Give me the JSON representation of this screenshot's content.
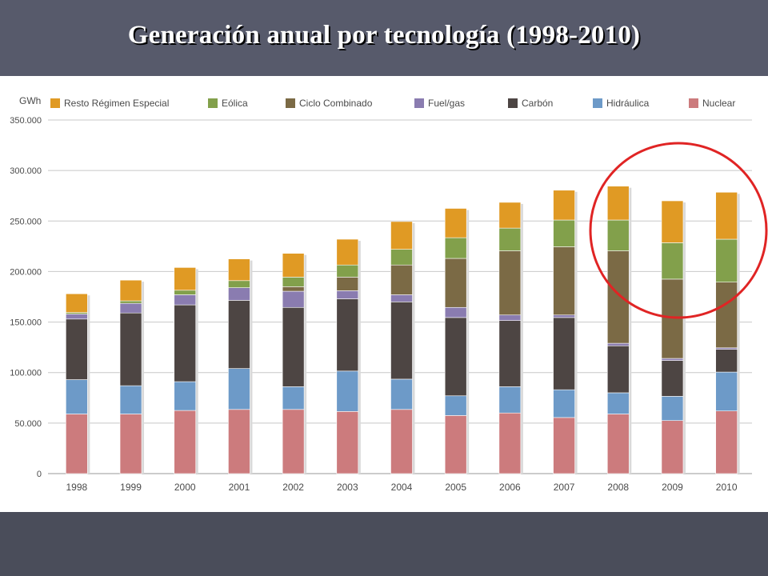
{
  "slide": {
    "title": "Generación anual por tecnología (1998-2010)"
  },
  "colors": {
    "header_bg": "#575a6b",
    "footer_bg": "#4a4d5a",
    "highlight": "#e02424"
  },
  "chart_data": {
    "type": "bar",
    "stacked": true,
    "title": "",
    "xlabel": "",
    "ylabel": "GWh",
    "ylim": [
      0,
      350000
    ],
    "yticks": [
      0,
      50000,
      100000,
      150000,
      200000,
      250000,
      300000,
      350000
    ],
    "ytick_labels": [
      "0",
      "50.000",
      "100.000",
      "150.000",
      "200.000",
      "250.000",
      "300.000",
      "350.000"
    ],
    "grid": true,
    "legend": "top",
    "highlight_years": [
      "2008",
      "2009",
      "2010"
    ],
    "categories": [
      "1998",
      "1999",
      "2000",
      "2001",
      "2002",
      "2003",
      "2004",
      "2005",
      "2006",
      "2007",
      "2008",
      "2009",
      "2010"
    ],
    "series": [
      {
        "name": "Nuclear",
        "color": "#cc7b7d",
        "values": [
          59000,
          59000,
          62500,
          63500,
          63500,
          61500,
          63500,
          57500,
          60000,
          55500,
          59000,
          52500,
          62000
        ]
      },
      {
        "name": "Hidráulica",
        "color": "#6d9ac8",
        "values": [
          34000,
          28000,
          28500,
          40500,
          22500,
          40000,
          30000,
          19500,
          26000,
          27500,
          21000,
          24000,
          38500
        ]
      },
      {
        "name": "Carbón",
        "color": "#4d4543",
        "values": [
          60000,
          72000,
          76000,
          67500,
          78500,
          71500,
          76500,
          77500,
          65500,
          71500,
          46500,
          35500,
          22500
        ]
      },
      {
        "name": "Fuel/gas",
        "color": "#8a7cb0",
        "values": [
          5000,
          9500,
          10000,
          12500,
          16000,
          8000,
          7000,
          10000,
          5500,
          2500,
          2500,
          2000,
          1500
        ]
      },
      {
        "name": "Ciclo Combinado",
        "color": "#7b6a45",
        "values": [
          0,
          0,
          0,
          0,
          4500,
          13500,
          29500,
          48500,
          63500,
          67500,
          91500,
          78500,
          65000
        ]
      },
      {
        "name": "Eólica",
        "color": "#82a04b",
        "values": [
          1500,
          2500,
          4500,
          7000,
          9500,
          12000,
          15500,
          20500,
          22500,
          26500,
          30500,
          36000,
          42500
        ]
      },
      {
        "name": "Resto Régimen Especial",
        "color": "#e09a24",
        "values": [
          18500,
          20500,
          22500,
          21500,
          23500,
          25500,
          27500,
          29000,
          25500,
          29500,
          33500,
          41500,
          46500
        ]
      }
    ]
  }
}
